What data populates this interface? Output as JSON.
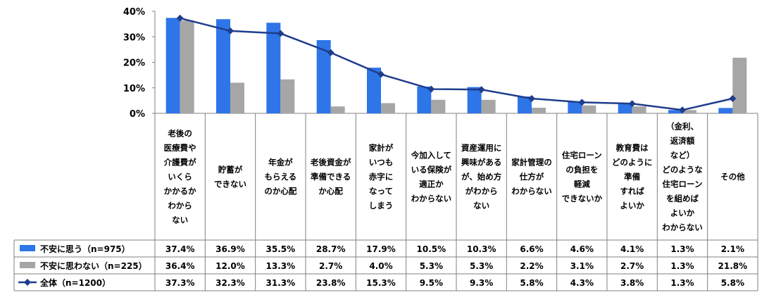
{
  "chart_data": {
    "type": "bar",
    "y_ticks": [
      "0%",
      "10%",
      "20%",
      "30%",
      "40%"
    ],
    "ylim": [
      0,
      40
    ],
    "grid": false,
    "legend": "data-table",
    "categories": [
      [
        "老後の",
        "医療費や",
        "介護費が",
        "いくら",
        "かかるか",
        "わから",
        "ない"
      ],
      [
        "貯蓄が",
        "できない"
      ],
      [
        "年金が",
        "もらえる",
        "のか心配"
      ],
      [
        "老後資金が",
        "準備できる",
        "か心配"
      ],
      [
        "家計が",
        "いつも",
        "赤字に",
        "なって",
        "しまう"
      ],
      [
        "今加入して",
        "いる保険が",
        "適正か",
        "わからない"
      ],
      [
        "資産運用に",
        "興味がある",
        "が、始め方",
        "がわから",
        "ない"
      ],
      [
        "家計管理の",
        "仕方が",
        "わからない"
      ],
      [
        "住宅ローン",
        "の負担を",
        "軽減",
        "できないか"
      ],
      [
        "教育費は",
        "どのように",
        "準備",
        "すれば",
        "よいか"
      ],
      [
        "（金利、",
        "返済額",
        "など）",
        "どのような",
        "住宅ローン",
        "を組めば",
        "よいか",
        "わからない"
      ],
      [
        "その他"
      ]
    ],
    "series": [
      {
        "name": "不安に思う（n=975）",
        "type": "bar",
        "color": "#2e75e8",
        "values": [
          37.4,
          36.9,
          35.5,
          28.7,
          17.9,
          10.5,
          10.3,
          6.6,
          4.6,
          4.1,
          1.3,
          2.1
        ],
        "labels": [
          "37.4%",
          "36.9%",
          "35.5%",
          "28.7%",
          "17.9%",
          "10.5%",
          "10.3%",
          "6.6%",
          "4.6%",
          "4.1%",
          "1.3%",
          "2.1%"
        ]
      },
      {
        "name": "不安に思わない（n=225）",
        "type": "bar",
        "color": "#a6a6a6",
        "values": [
          36.4,
          12.0,
          13.3,
          2.7,
          4.0,
          5.3,
          5.3,
          2.2,
          3.1,
          2.7,
          1.3,
          21.8
        ],
        "labels": [
          "36.4%",
          "12.0%",
          "13.3%",
          "2.7%",
          "4.0%",
          "5.3%",
          "5.3%",
          "2.2%",
          "3.1%",
          "2.7%",
          "1.3%",
          "21.8%"
        ]
      },
      {
        "name": "全体（n=1200）",
        "type": "line",
        "color": "#1f3d8c",
        "values": [
          37.3,
          32.3,
          31.3,
          23.8,
          15.3,
          9.5,
          9.3,
          5.8,
          4.3,
          3.8,
          1.3,
          5.8
        ],
        "labels": [
          "37.3%",
          "32.3%",
          "31.3%",
          "23.8%",
          "15.3%",
          "9.5%",
          "9.3%",
          "5.8%",
          "4.3%",
          "3.8%",
          "1.3%",
          "5.8%"
        ]
      }
    ]
  }
}
